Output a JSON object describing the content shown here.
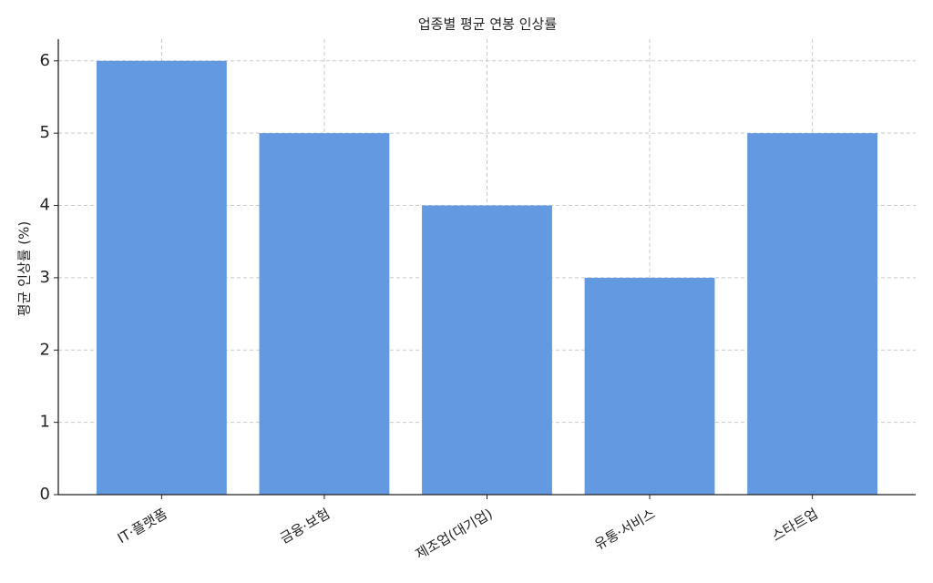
{
  "chart_data": {
    "type": "bar",
    "title": "업종별 평균 연봉 인상률",
    "y_label": "평균 인상률 (%)",
    "categories": [
      "IT·플랫폼",
      "금융·보험",
      "제조업(대기업)",
      "유통·서비스",
      "스타트업"
    ],
    "values": [
      6,
      5,
      4,
      3,
      5
    ],
    "color": "#6399e0",
    "ylim": [
      0,
      6.3
    ],
    "yticks": [
      0,
      1,
      2,
      3,
      4,
      5,
      6
    ],
    "grid": true
  }
}
